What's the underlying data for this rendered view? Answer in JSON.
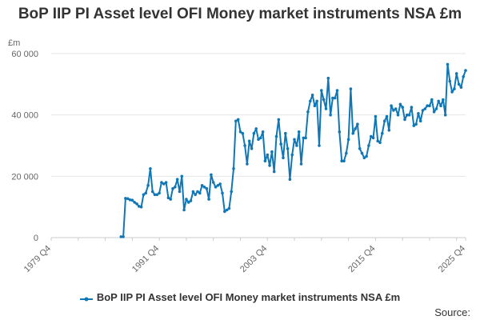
{
  "chart_data": {
    "type": "line",
    "title": "BoP IIP PI Asset level OFI Money market instruments NSA £m",
    "ylabel": "£m",
    "xlabel": "",
    "ylim": [
      0,
      60000
    ],
    "yticks": [
      0,
      20000,
      40000,
      60000
    ],
    "ytick_labels": [
      "0",
      "20 000",
      "40 000",
      "60 000"
    ],
    "x_range": [
      "1979 Q4",
      "2025 Q4"
    ],
    "xtick_labels": [
      "1979 Q4",
      "1991 Q4",
      "2003 Q4",
      "2015 Q4",
      "2025 Q4"
    ],
    "grid": "horizontal",
    "legend": "bottom",
    "color": "#0f77b6",
    "series": [
      {
        "name": "BoP IIP PI Asset level OFI Money market instruments NSA £m",
        "x": [
          "1987 Q3",
          "1987 Q4",
          "1988 Q1",
          "1988 Q2",
          "1988 Q3",
          "1988 Q4",
          "1989 Q1",
          "1989 Q2",
          "1989 Q3",
          "1989 Q4",
          "1990 Q1",
          "1990 Q2",
          "1990 Q3",
          "1990 Q4",
          "1991 Q1",
          "1991 Q2",
          "1991 Q3",
          "1991 Q4",
          "1992 Q1",
          "1992 Q2",
          "1992 Q3",
          "1992 Q4",
          "1993 Q1",
          "1993 Q2",
          "1993 Q3",
          "1993 Q4",
          "1994 Q1",
          "1994 Q2",
          "1994 Q3",
          "1994 Q4",
          "1995 Q1",
          "1995 Q2",
          "1995 Q3",
          "1995 Q4",
          "1996 Q1",
          "1996 Q2",
          "1996 Q3",
          "1996 Q4",
          "1997 Q1",
          "1997 Q2",
          "1997 Q3",
          "1997 Q4",
          "1998 Q1",
          "1998 Q2",
          "1998 Q3",
          "1998 Q4",
          "1999 Q1",
          "1999 Q2",
          "1999 Q3",
          "1999 Q4",
          "2000 Q1",
          "2000 Q2",
          "2000 Q3",
          "2000 Q4",
          "2001 Q1",
          "2001 Q2",
          "2001 Q3",
          "2001 Q4",
          "2002 Q1",
          "2002 Q2",
          "2002 Q3",
          "2002 Q4",
          "2003 Q1",
          "2003 Q2",
          "2003 Q3",
          "2003 Q4",
          "2004 Q1",
          "2004 Q2",
          "2004 Q3",
          "2004 Q4",
          "2005 Q1",
          "2005 Q2",
          "2005 Q3",
          "2005 Q4",
          "2006 Q1",
          "2006 Q2",
          "2006 Q3",
          "2006 Q4",
          "2007 Q1",
          "2007 Q2",
          "2007 Q3",
          "2007 Q4",
          "2008 Q1",
          "2008 Q2",
          "2008 Q3",
          "2008 Q4",
          "2009 Q1",
          "2009 Q2",
          "2009 Q3",
          "2009 Q4",
          "2010 Q1",
          "2010 Q2",
          "2010 Q3",
          "2010 Q4",
          "2011 Q1",
          "2011 Q2",
          "2011 Q3",
          "2011 Q4",
          "2012 Q1",
          "2012 Q2",
          "2012 Q3",
          "2012 Q4",
          "2013 Q1",
          "2013 Q2",
          "2013 Q3",
          "2013 Q4",
          "2014 Q1",
          "2014 Q2",
          "2014 Q3",
          "2014 Q4",
          "2015 Q1",
          "2015 Q2",
          "2015 Q3",
          "2015 Q4",
          "2016 Q1",
          "2016 Q2",
          "2016 Q3",
          "2016 Q4",
          "2017 Q1",
          "2017 Q2",
          "2017 Q3",
          "2017 Q4",
          "2018 Q1",
          "2018 Q2",
          "2018 Q3",
          "2018 Q4",
          "2019 Q1",
          "2019 Q2",
          "2019 Q3",
          "2019 Q4",
          "2020 Q1",
          "2020 Q2",
          "2020 Q3",
          "2020 Q4",
          "2021 Q1",
          "2021 Q2",
          "2021 Q3",
          "2021 Q4",
          "2022 Q1",
          "2022 Q2",
          "2022 Q3",
          "2022 Q4",
          "2023 Q1",
          "2023 Q2",
          "2023 Q3",
          "2023 Q4",
          "2024 Q1",
          "2024 Q2",
          "2024 Q3",
          "2024 Q4",
          "2025 Q1",
          "2025 Q2",
          "2025 Q3",
          "2025 Q4"
        ],
        "values": [
          300,
          300,
          12800,
          12700,
          12300,
          12200,
          11500,
          11000,
          10200,
          10000,
          14000,
          14500,
          17000,
          22500,
          15000,
          14000,
          14000,
          14500,
          18000,
          17500,
          18000,
          13000,
          12500,
          16000,
          16500,
          19000,
          15000,
          20000,
          9000,
          12500,
          11500,
          12000,
          15000,
          14000,
          15000,
          14500,
          17000,
          16500,
          16000,
          12500,
          20500,
          18000,
          16500,
          17000,
          17500,
          14500,
          8500,
          9000,
          9500,
          15000,
          22500,
          38000,
          38500,
          34500,
          34000,
          30000,
          24000,
          31500,
          29000,
          34000,
          35500,
          32000,
          32500,
          34500,
          25000,
          27000,
          23500,
          28000,
          21500,
          33000,
          38500,
          30500,
          26000,
          34000,
          29000,
          19000,
          27000,
          32000,
          30000,
          34500,
          24000,
          32500,
          32500,
          41000,
          44500,
          46500,
          43000,
          44500,
          30000,
          48000,
          45000,
          42000,
          52000,
          40000,
          45500,
          45500,
          48000,
          34500,
          25000,
          25000,
          27500,
          32000,
          48500,
          34000,
          35500,
          37000,
          29000,
          27500,
          26000,
          26500,
          30000,
          33000,
          32500,
          39500,
          31500,
          31000,
          34000,
          38000,
          39500,
          35000,
          43000,
          41500,
          42000,
          40000,
          43500,
          42500,
          38500,
          40000,
          40000,
          42500,
          36500,
          37000,
          40500,
          38000,
          41500,
          42000,
          43000,
          43000,
          45000,
          41000,
          42000,
          44500,
          43000,
          45000,
          40000,
          56500,
          51000,
          47500,
          48500,
          53500,
          50000,
          49000,
          52500,
          54500
        ]
      }
    ]
  },
  "source_label": "Source:"
}
